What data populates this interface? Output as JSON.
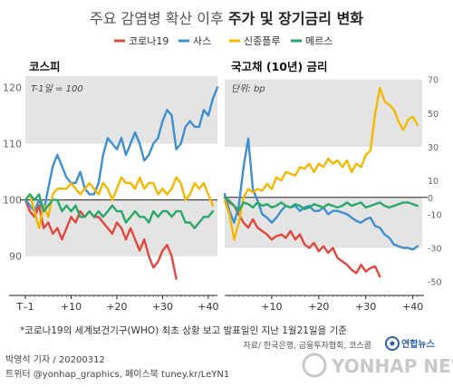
{
  "title": {
    "part1": "주요 감염병 확산 이후 ",
    "part2": "주가 및 장기금리 변화"
  },
  "legend": [
    {
      "name": "코로나19",
      "color": "#e2463c"
    },
    {
      "name": "사스",
      "color": "#3f8fcf"
    },
    {
      "name": "신종플루",
      "color": "#f5b800"
    },
    {
      "name": "메르스",
      "color": "#2aa86a"
    }
  ],
  "footnote": "*코로나19의 세계보건기구(WHO) 최초 상황 보고 발표일인 지난 1월21일을 기준",
  "source": "자료/ 한국은행, 금융투자협회, 코스콤",
  "credit": {
    "author": "박영석 기자 / 20200312",
    "sns": "트위터 @yonhap_graphics, 페이스북 tuney.kr/LeYN1"
  },
  "logo": {
    "small": "연합뉴스",
    "big": "YONHAP NEWS"
  },
  "chart_data": [
    {
      "type": "line",
      "title": "코스피",
      "note": "T-1일 = 100",
      "x_ticks": [
        "T–1",
        "+10",
        "+20",
        "+30",
        "+40"
      ],
      "x_tick_values": [
        0,
        10,
        20,
        30,
        40
      ],
      "xlim": [
        0,
        42
      ],
      "y_ticks": [
        90,
        100,
        110,
        120
      ],
      "ylim": [
        84,
        122
      ],
      "grid_bands": [
        [
          90,
          100
        ],
        [
          110,
          122
        ]
      ],
      "series": [
        {
          "name": "코로나19",
          "color": "#e2463c",
          "x": [
            0,
            1,
            2,
            3,
            4,
            5,
            6,
            7,
            8,
            9,
            10,
            11,
            12,
            13,
            14,
            15,
            16,
            17,
            18,
            19,
            20,
            21,
            22,
            23,
            24,
            25,
            26,
            27,
            28,
            29,
            30,
            31,
            32,
            33
          ],
          "y": [
            100,
            98,
            97,
            99,
            95,
            96,
            94,
            95,
            93,
            95,
            97,
            96,
            98,
            97,
            98,
            97,
            97,
            96,
            95,
            94,
            96,
            95,
            93,
            95,
            93,
            91,
            93,
            90,
            88,
            89,
            91,
            92,
            90,
            86
          ]
        },
        {
          "name": "사스",
          "color": "#3f8fcf",
          "x": [
            0,
            1,
            2,
            3,
            4,
            5,
            6,
            7,
            8,
            9,
            10,
            11,
            12,
            13,
            14,
            15,
            16,
            17,
            18,
            19,
            20,
            21,
            22,
            23,
            24,
            25,
            26,
            27,
            28,
            29,
            30,
            31,
            32,
            33,
            34,
            35,
            36,
            37,
            38,
            39,
            40,
            41,
            42
          ],
          "y": [
            100,
            99,
            98,
            100,
            98,
            102,
            106,
            108,
            106,
            104,
            103,
            103,
            105,
            102,
            101,
            101,
            103,
            108,
            111,
            110,
            109,
            111,
            108,
            110,
            112,
            110,
            107,
            108,
            110,
            111,
            114,
            116,
            115,
            109,
            110,
            113,
            114,
            113,
            113,
            116,
            115,
            118,
            120
          ]
        },
        {
          "name": "신종플루",
          "color": "#f5b800",
          "x": [
            0,
            1,
            2,
            3,
            4,
            5,
            6,
            7,
            8,
            9,
            10,
            11,
            12,
            13,
            14,
            15,
            16,
            17,
            18,
            19,
            20,
            21,
            22,
            23,
            24,
            25,
            26,
            27,
            28,
            29,
            30,
            31,
            32,
            33,
            34,
            35,
            36,
            37,
            38,
            39,
            40,
            41
          ],
          "y": [
            100,
            101,
            98,
            95,
            99,
            97,
            101,
            102,
            102,
            102,
            103,
            102,
            101,
            102,
            103,
            102,
            101,
            103,
            102,
            100,
            102,
            104,
            103,
            103,
            102,
            104,
            102,
            103,
            103,
            101,
            102,
            101,
            102,
            104,
            103,
            100,
            101,
            103,
            102,
            103,
            101,
            99
          ]
        },
        {
          "name": "메르스",
          "color": "#2aa86a",
          "x": [
            0,
            1,
            2,
            3,
            4,
            5,
            6,
            7,
            8,
            9,
            10,
            11,
            12,
            13,
            14,
            15,
            16,
            17,
            18,
            19,
            20,
            21,
            22,
            23,
            24,
            25,
            26,
            27,
            28,
            29,
            30,
            31,
            32,
            33,
            34,
            35,
            36,
            37,
            38,
            39,
            40,
            41
          ],
          "y": [
            100,
            101,
            100,
            101,
            98,
            99,
            100,
            100,
            98,
            99,
            98,
            99,
            97,
            97,
            98,
            97,
            98,
            97,
            98,
            99,
            98,
            98,
            96,
            97,
            98,
            97,
            97,
            96,
            98,
            97,
            98,
            98,
            97,
            98,
            98,
            96,
            96,
            95,
            96,
            97,
            97,
            98
          ]
        }
      ]
    },
    {
      "type": "line",
      "title": "국고채 (10년) 금리",
      "note": "단위: bp",
      "x_ticks": [
        "+10",
        "+20",
        "+30",
        "+40"
      ],
      "x_tick_values": [
        10,
        20,
        30,
        40
      ],
      "xlim": [
        0,
        42
      ],
      "y_ticks": [
        70,
        50,
        30,
        10,
        0,
        -10,
        -30,
        -50
      ],
      "ylim": [
        -55,
        72
      ],
      "grid_bands": [
        [
          -30,
          0
        ],
        [
          30,
          70
        ]
      ],
      "series": [
        {
          "name": "코로나19",
          "color": "#e2463c",
          "x": [
            0,
            1,
            2,
            3,
            4,
            5,
            6,
            7,
            8,
            9,
            10,
            11,
            12,
            13,
            14,
            15,
            16,
            17,
            18,
            19,
            20,
            21,
            22,
            23,
            24,
            25,
            26,
            27,
            28,
            29,
            30,
            31,
            32,
            33
          ],
          "y": [
            0,
            -3,
            -5,
            -10,
            -15,
            -18,
            -13,
            -18,
            -20,
            -22,
            -25,
            -23,
            -22,
            -24,
            -20,
            -25,
            -22,
            -28,
            -30,
            -27,
            -32,
            -29,
            -33,
            -30,
            -36,
            -38,
            -40,
            -43,
            -45,
            -40,
            -44,
            -42,
            -41,
            -47
          ]
        },
        {
          "name": "사스",
          "color": "#3f8fcf",
          "x": [
            0,
            1,
            2,
            3,
            4,
            5,
            6,
            7,
            8,
            9,
            10,
            11,
            12,
            13,
            14,
            15,
            16,
            17,
            18,
            19,
            20,
            21,
            22,
            23,
            24,
            25,
            26,
            27,
            28,
            29,
            30,
            31,
            32,
            33,
            34,
            35,
            36,
            37,
            38,
            39,
            40,
            41
          ],
          "y": [
            2,
            -8,
            -15,
            -5,
            18,
            35,
            5,
            -2,
            -10,
            -12,
            -15,
            -12,
            -8,
            -5,
            -6,
            -5,
            -8,
            -6,
            -5,
            -8,
            -8,
            -6,
            -10,
            -8,
            -8,
            -9,
            -10,
            -12,
            -14,
            -15,
            -13,
            -12,
            -17,
            -18,
            -22,
            -24,
            -28,
            -29,
            -30,
            -30,
            -31,
            -29
          ]
        },
        {
          "name": "신종플루",
          "color": "#f5b800",
          "x": [
            0,
            1,
            2,
            3,
            4,
            5,
            6,
            7,
            8,
            9,
            10,
            11,
            12,
            13,
            14,
            15,
            16,
            17,
            18,
            19,
            20,
            21,
            22,
            23,
            24,
            25,
            26,
            27,
            28,
            29,
            30,
            31,
            32,
            33,
            34,
            35,
            36,
            37,
            38,
            39,
            40,
            41
          ],
          "y": [
            -2,
            -10,
            -25,
            -15,
            0,
            5,
            3,
            5,
            4,
            8,
            5,
            12,
            10,
            15,
            14,
            13,
            18,
            17,
            20,
            15,
            20,
            18,
            23,
            20,
            22,
            18,
            22,
            15,
            20,
            18,
            25,
            28,
            50,
            65,
            57,
            55,
            52,
            45,
            40,
            46,
            48,
            43
          ]
        },
        {
          "name": "메르스",
          "color": "#2aa86a",
          "x": [
            0,
            1,
            2,
            3,
            4,
            5,
            6,
            7,
            8,
            9,
            10,
            11,
            12,
            13,
            14,
            15,
            16,
            17,
            18,
            19,
            20,
            21,
            22,
            23,
            24,
            25,
            26,
            27,
            28,
            29,
            30,
            31,
            32,
            33,
            34,
            35,
            36,
            37,
            38,
            39,
            40,
            41
          ],
          "y": [
            0,
            -2,
            -5,
            -8,
            -3,
            -4,
            -6,
            -3,
            -5,
            -4,
            -6,
            -5,
            -3,
            -5,
            -6,
            -4,
            -5,
            -7,
            -6,
            -4,
            -5,
            -6,
            -4,
            -5,
            -6,
            -5,
            -3,
            -5,
            -4,
            -3,
            -6,
            -5,
            -4,
            -3,
            -5,
            -6,
            -5,
            -4,
            -3,
            -3,
            -4,
            -5
          ]
        }
      ]
    }
  ]
}
